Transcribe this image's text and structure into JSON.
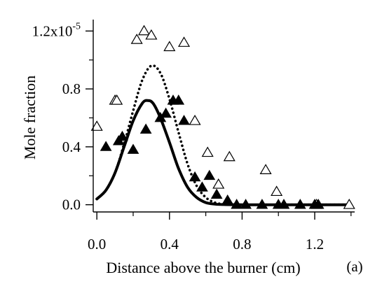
{
  "chart_data": {
    "type": "scatter",
    "xlabel": "Distance above the burner (cm)",
    "ylabel": "Mole fraction",
    "panel_label": "(a)",
    "xlim": [
      -0.02,
      1.42
    ],
    "ylim": [
      -5e-07,
      1.25e-05
    ],
    "x_ticks": [
      0.0,
      0.4,
      0.8,
      1.2
    ],
    "x_tick_labels": [
      "0.0",
      "0.4",
      "0.8",
      "1.2"
    ],
    "x_minor_ticks": [
      0.2,
      0.6,
      1.0,
      1.4
    ],
    "y_ticks": [
      0.0,
      4e-06,
      8e-06,
      1.2e-05
    ],
    "y_tick_labels": [
      "0.0",
      "0.4",
      "0.8",
      "1.2x10"
    ],
    "y_label_exponent": "-5",
    "y_minor_ticks": [
      2e-06,
      6e-06,
      1e-05
    ],
    "grid": false,
    "series": [
      {
        "marker": "open-triangle",
        "x": [
          0.0,
          0.1,
          0.11,
          0.22,
          0.26,
          0.3,
          0.4,
          0.48,
          0.54,
          0.61,
          0.67,
          0.73,
          0.93,
          0.99,
          1.21,
          1.39
        ],
        "y": [
          5.4e-06,
          7.2e-06,
          7.2e-06,
          1.14e-05,
          1.2e-05,
          1.17e-05,
          1.09e-05,
          1.12e-05,
          5.8e-06,
          3.6e-06,
          1.4e-06,
          3.3e-06,
          2.4e-06,
          9e-07,
          0.0,
          0.0
        ]
      },
      {
        "marker": "filled-triangle",
        "x": [
          0.05,
          0.12,
          0.14,
          0.2,
          0.27,
          0.35,
          0.38,
          0.42,
          0.45,
          0.48,
          0.54,
          0.58,
          0.62,
          0.66,
          0.72,
          0.77,
          0.82,
          0.91,
          1.0,
          1.03,
          1.12,
          1.2,
          1.22
        ],
        "y": [
          4e-06,
          4.4e-06,
          4.7e-06,
          3.8e-06,
          5.2e-06,
          6e-06,
          6.3e-06,
          7.2e-06,
          7.2e-06,
          5.8e-06,
          1.9e-06,
          1.2e-06,
          2e-06,
          7e-07,
          3e-07,
          0.0,
          0.0,
          0.0,
          0.0,
          0.0,
          0.0,
          0.0,
          0.0
        ]
      },
      {
        "marker": "solid-line",
        "x": [
          0.0,
          0.05,
          0.1,
          0.15,
          0.2,
          0.25,
          0.28,
          0.31,
          0.35,
          0.4,
          0.45,
          0.5,
          0.55,
          0.6,
          0.65,
          0.7,
          0.8,
          1.0,
          1.2,
          1.4
        ],
        "y": [
          4e-07,
          1e-06,
          2.2e-06,
          4e-06,
          5.8e-06,
          7e-06,
          7.2e-06,
          7e-06,
          6e-06,
          4.3e-06,
          2.5e-06,
          1.2e-06,
          5e-07,
          1.5e-07,
          4e-08,
          1e-08,
          0.0,
          0.0,
          0.0,
          0.0
        ]
      },
      {
        "marker": "dotted-line",
        "x": [
          0.0,
          0.05,
          0.1,
          0.15,
          0.2,
          0.25,
          0.3,
          0.35,
          0.4,
          0.45,
          0.5,
          0.55,
          0.6,
          0.65,
          0.7,
          0.8,
          1.0,
          1.2,
          1.4
        ],
        "y": [
          4e-07,
          1e-06,
          2.2e-06,
          4.2e-06,
          6.5e-06,
          8.6e-06,
          9.6e-06,
          9.1e-06,
          7.3e-06,
          5e-06,
          2.8e-06,
          1.3e-06,
          5e-07,
          1.5e-07,
          4e-08,
          0.0,
          0.0,
          0.0,
          0.0
        ]
      }
    ]
  }
}
